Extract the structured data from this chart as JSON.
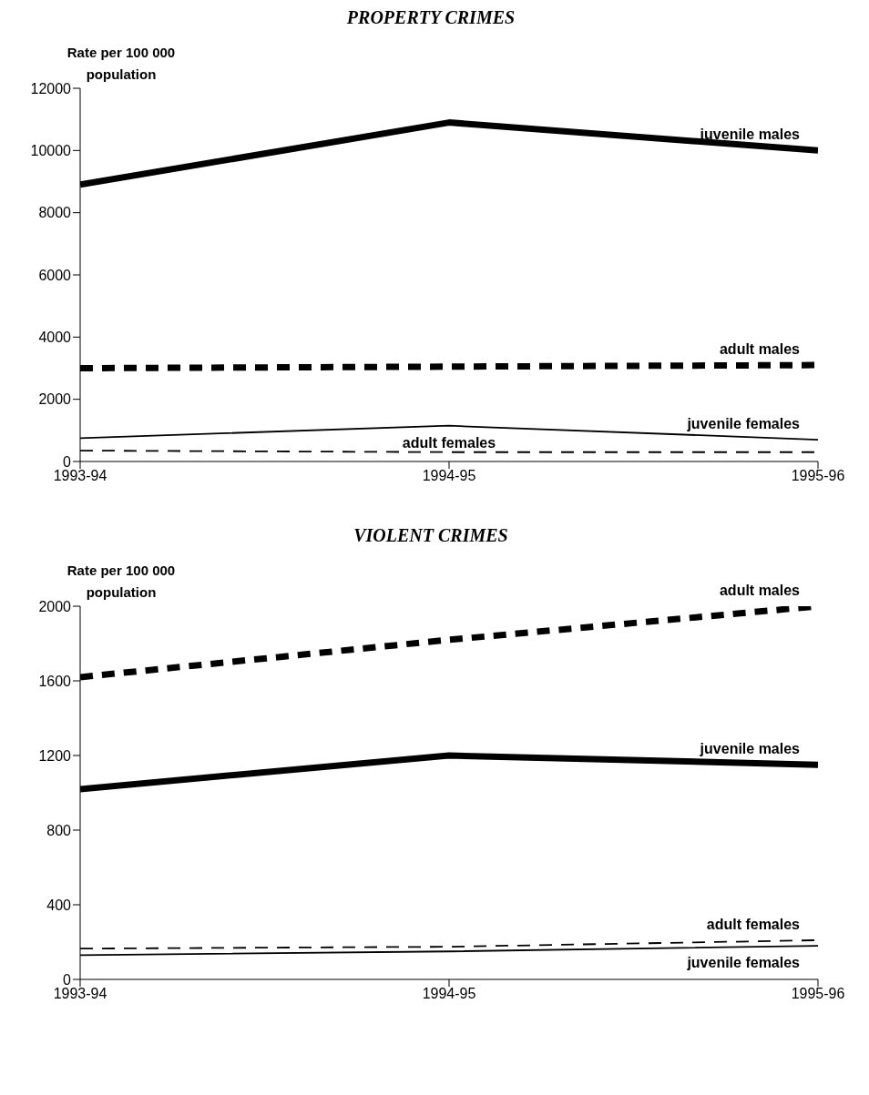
{
  "chart_data": [
    {
      "type": "line",
      "title": "PROPERTY CRIMES",
      "ylabel": "Rate per 100 000 population",
      "categories": [
        "1993-94",
        "1994-95",
        "1995-96"
      ],
      "ylim": [
        0,
        12000
      ],
      "yticks": [
        0,
        2000,
        4000,
        6000,
        8000,
        10000,
        12000
      ],
      "grid": false,
      "legend": false,
      "marker": "none",
      "series": [
        {
          "name": "juvenile males",
          "color": "#000000",
          "line_style": "solid",
          "values": [
            8900,
            10900,
            10000
          ]
        },
        {
          "name": "adult males",
          "color": "#000000",
          "line_style": "dashed",
          "values": [
            3000,
            3050,
            3100
          ]
        },
        {
          "name": "juvenile females",
          "color": "#000000",
          "line_style": "solid",
          "values": [
            750,
            1150,
            700
          ]
        },
        {
          "name": "adult females",
          "color": "#000000",
          "line_style": "dashed",
          "values": [
            350,
            300,
            300
          ]
        }
      ]
    },
    {
      "type": "line",
      "title": "VIOLENT CRIMES",
      "ylabel": "Rate per 100 000 population",
      "categories": [
        "1993-94",
        "1994-95",
        "1995-96"
      ],
      "ylim": [
        0,
        2000
      ],
      "yticks": [
        0,
        400,
        800,
        1200,
        1600,
        2000
      ],
      "grid": false,
      "legend": false,
      "marker": "none",
      "series": [
        {
          "name": "juvenile males",
          "color": "#000000",
          "line_style": "solid",
          "values": [
            1020,
            1200,
            1150
          ]
        },
        {
          "name": "adult males",
          "color": "#000000",
          "line_style": "dashed",
          "values": [
            1620,
            1820,
            2000
          ]
        },
        {
          "name": "juvenile females",
          "color": "#000000",
          "line_style": "solid",
          "values": [
            130,
            150,
            180
          ]
        },
        {
          "name": "adult females",
          "color": "#000000",
          "line_style": "dashed",
          "values": [
            165,
            175,
            210
          ]
        }
      ]
    }
  ]
}
